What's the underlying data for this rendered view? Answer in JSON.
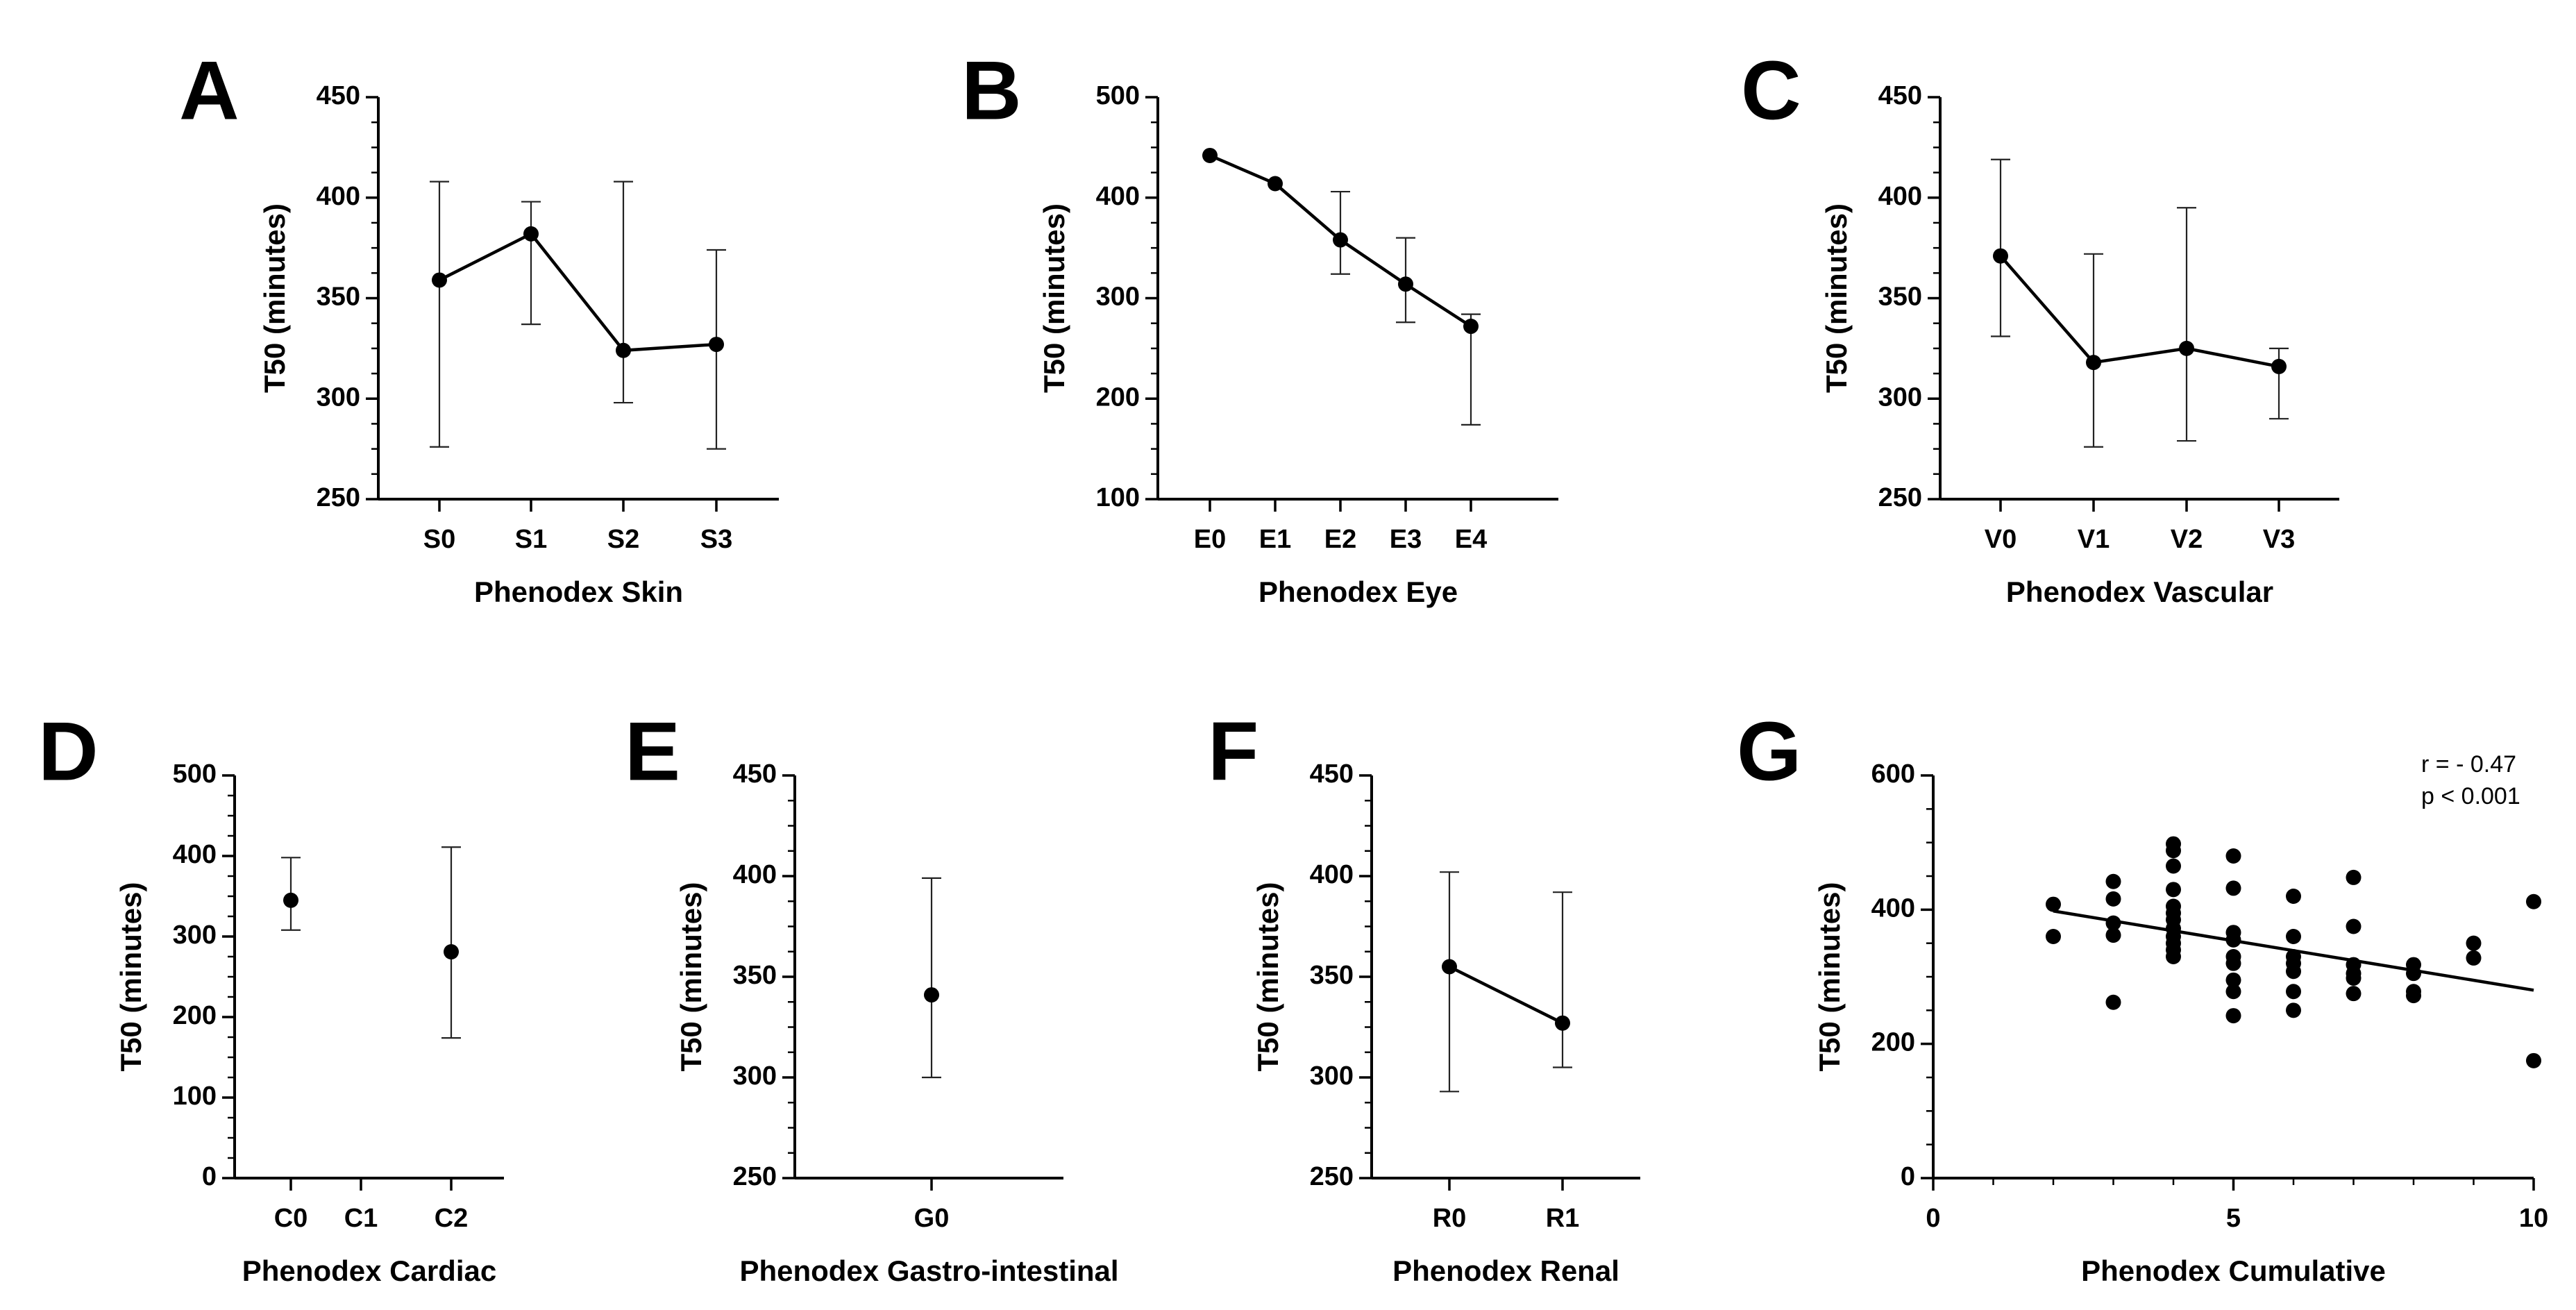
{
  "chart_data": [
    {
      "panel": "A",
      "type": "line",
      "categories": [
        "S0",
        "S1",
        "S2",
        "S3"
      ],
      "values": [
        359,
        382,
        324,
        327
      ],
      "err_low": [
        276,
        337,
        298,
        275
      ],
      "err_high": [
        408,
        398,
        408,
        374
      ],
      "xlabel": "Phenodex Skin",
      "ylabel": "T50 (minutes)",
      "ylim": [
        250,
        450
      ],
      "yticks": [
        250,
        300,
        350,
        400,
        450
      ],
      "connected": true
    },
    {
      "panel": "B",
      "type": "line",
      "categories": [
        "E0",
        "E1",
        "E2",
        "E3",
        "E4"
      ],
      "values": [
        442,
        414,
        358,
        314,
        272
      ],
      "err_low": [
        442,
        414,
        324,
        276,
        174
      ],
      "err_high": [
        442,
        414,
        406,
        360,
        284
      ],
      "xlabel": "Phenodex Eye",
      "ylabel": "T50 (minutes)",
      "ylim": [
        100,
        500
      ],
      "yticks": [
        100,
        200,
        300,
        400,
        500
      ],
      "connected": true
    },
    {
      "panel": "C",
      "type": "line",
      "categories": [
        "V0",
        "V1",
        "V2",
        "V3"
      ],
      "values": [
        371,
        318,
        325,
        316
      ],
      "err_low": [
        331,
        276,
        279,
        290
      ],
      "err_high": [
        419,
        372,
        395,
        325
      ],
      "xlabel": "Phenodex Vascular",
      "ylabel": "T50 (minutes)",
      "ylim": [
        250,
        450
      ],
      "yticks": [
        250,
        300,
        350,
        400,
        450
      ],
      "connected": true
    },
    {
      "panel": "D",
      "type": "scatter",
      "categories": [
        "C0",
        "C1",
        "C2"
      ],
      "values": [
        345,
        null,
        281
      ],
      "err_low": [
        308,
        null,
        174
      ],
      "err_high": [
        398,
        null,
        411
      ],
      "xlabel": "Phenodex Cardiac",
      "ylabel": "T50 (minutes)",
      "ylim": [
        0,
        500
      ],
      "yticks": [
        0,
        100,
        200,
        300,
        400,
        500
      ],
      "connected": false
    },
    {
      "panel": "E",
      "type": "scatter",
      "categories": [
        "G0"
      ],
      "values": [
        341
      ],
      "err_low": [
        300
      ],
      "err_high": [
        399
      ],
      "xlabel": "Phenodex Gastro-intestinal",
      "ylabel": "T50 (minutes)",
      "ylim": [
        250,
        450
      ],
      "yticks": [
        250,
        300,
        350,
        400,
        450
      ],
      "connected": false
    },
    {
      "panel": "F",
      "type": "line",
      "categories": [
        "R0",
        "R1"
      ],
      "values": [
        355,
        327
      ],
      "err_low": [
        293,
        305
      ],
      "err_high": [
        402,
        392
      ],
      "xlabel": "Phenodex Renal",
      "ylabel": "T50 (minutes)",
      "ylim": [
        250,
        450
      ],
      "yticks": [
        250,
        300,
        350,
        400,
        450
      ],
      "connected": true
    },
    {
      "panel": "G",
      "type": "scatter",
      "xlabel": "Phenodex Cumulative",
      "ylabel": "T50 (minutes)",
      "xlim": [
        0,
        10
      ],
      "xticks": [
        0,
        5,
        10
      ],
      "ylim": [
        0,
        600
      ],
      "yticks": [
        0,
        200,
        400,
        600
      ],
      "points": [
        [
          2,
          408
        ],
        [
          2,
          360
        ],
        [
          3,
          442
        ],
        [
          3,
          416
        ],
        [
          3,
          380
        ],
        [
          3,
          362
        ],
        [
          3,
          262
        ],
        [
          4,
          498
        ],
        [
          4,
          488
        ],
        [
          4,
          465
        ],
        [
          4,
          430
        ],
        [
          4,
          405
        ],
        [
          4,
          395
        ],
        [
          4,
          385
        ],
        [
          4,
          372
        ],
        [
          4,
          360
        ],
        [
          4,
          350
        ],
        [
          4,
          340
        ],
        [
          4,
          330
        ],
        [
          5,
          480
        ],
        [
          5,
          432
        ],
        [
          5,
          366
        ],
        [
          5,
          355
        ],
        [
          5,
          330
        ],
        [
          5,
          320
        ],
        [
          5,
          295
        ],
        [
          5,
          278
        ],
        [
          5,
          242
        ],
        [
          6,
          420
        ],
        [
          6,
          360
        ],
        [
          6,
          330
        ],
        [
          6,
          320
        ],
        [
          6,
          308
        ],
        [
          6,
          278
        ],
        [
          6,
          250
        ],
        [
          7,
          448
        ],
        [
          7,
          375
        ],
        [
          7,
          318
        ],
        [
          7,
          305
        ],
        [
          7,
          298
        ],
        [
          7,
          275
        ],
        [
          8,
          318
        ],
        [
          8,
          305
        ],
        [
          8,
          278
        ],
        [
          8,
          272
        ],
        [
          9,
          350
        ],
        [
          9,
          328
        ],
        [
          10,
          412
        ],
        [
          10,
          175
        ]
      ],
      "fit": {
        "x": [
          2,
          10
        ],
        "y": [
          398,
          280
        ]
      },
      "annotation": [
        "r = - 0.47",
        "p < 0.001"
      ]
    }
  ]
}
